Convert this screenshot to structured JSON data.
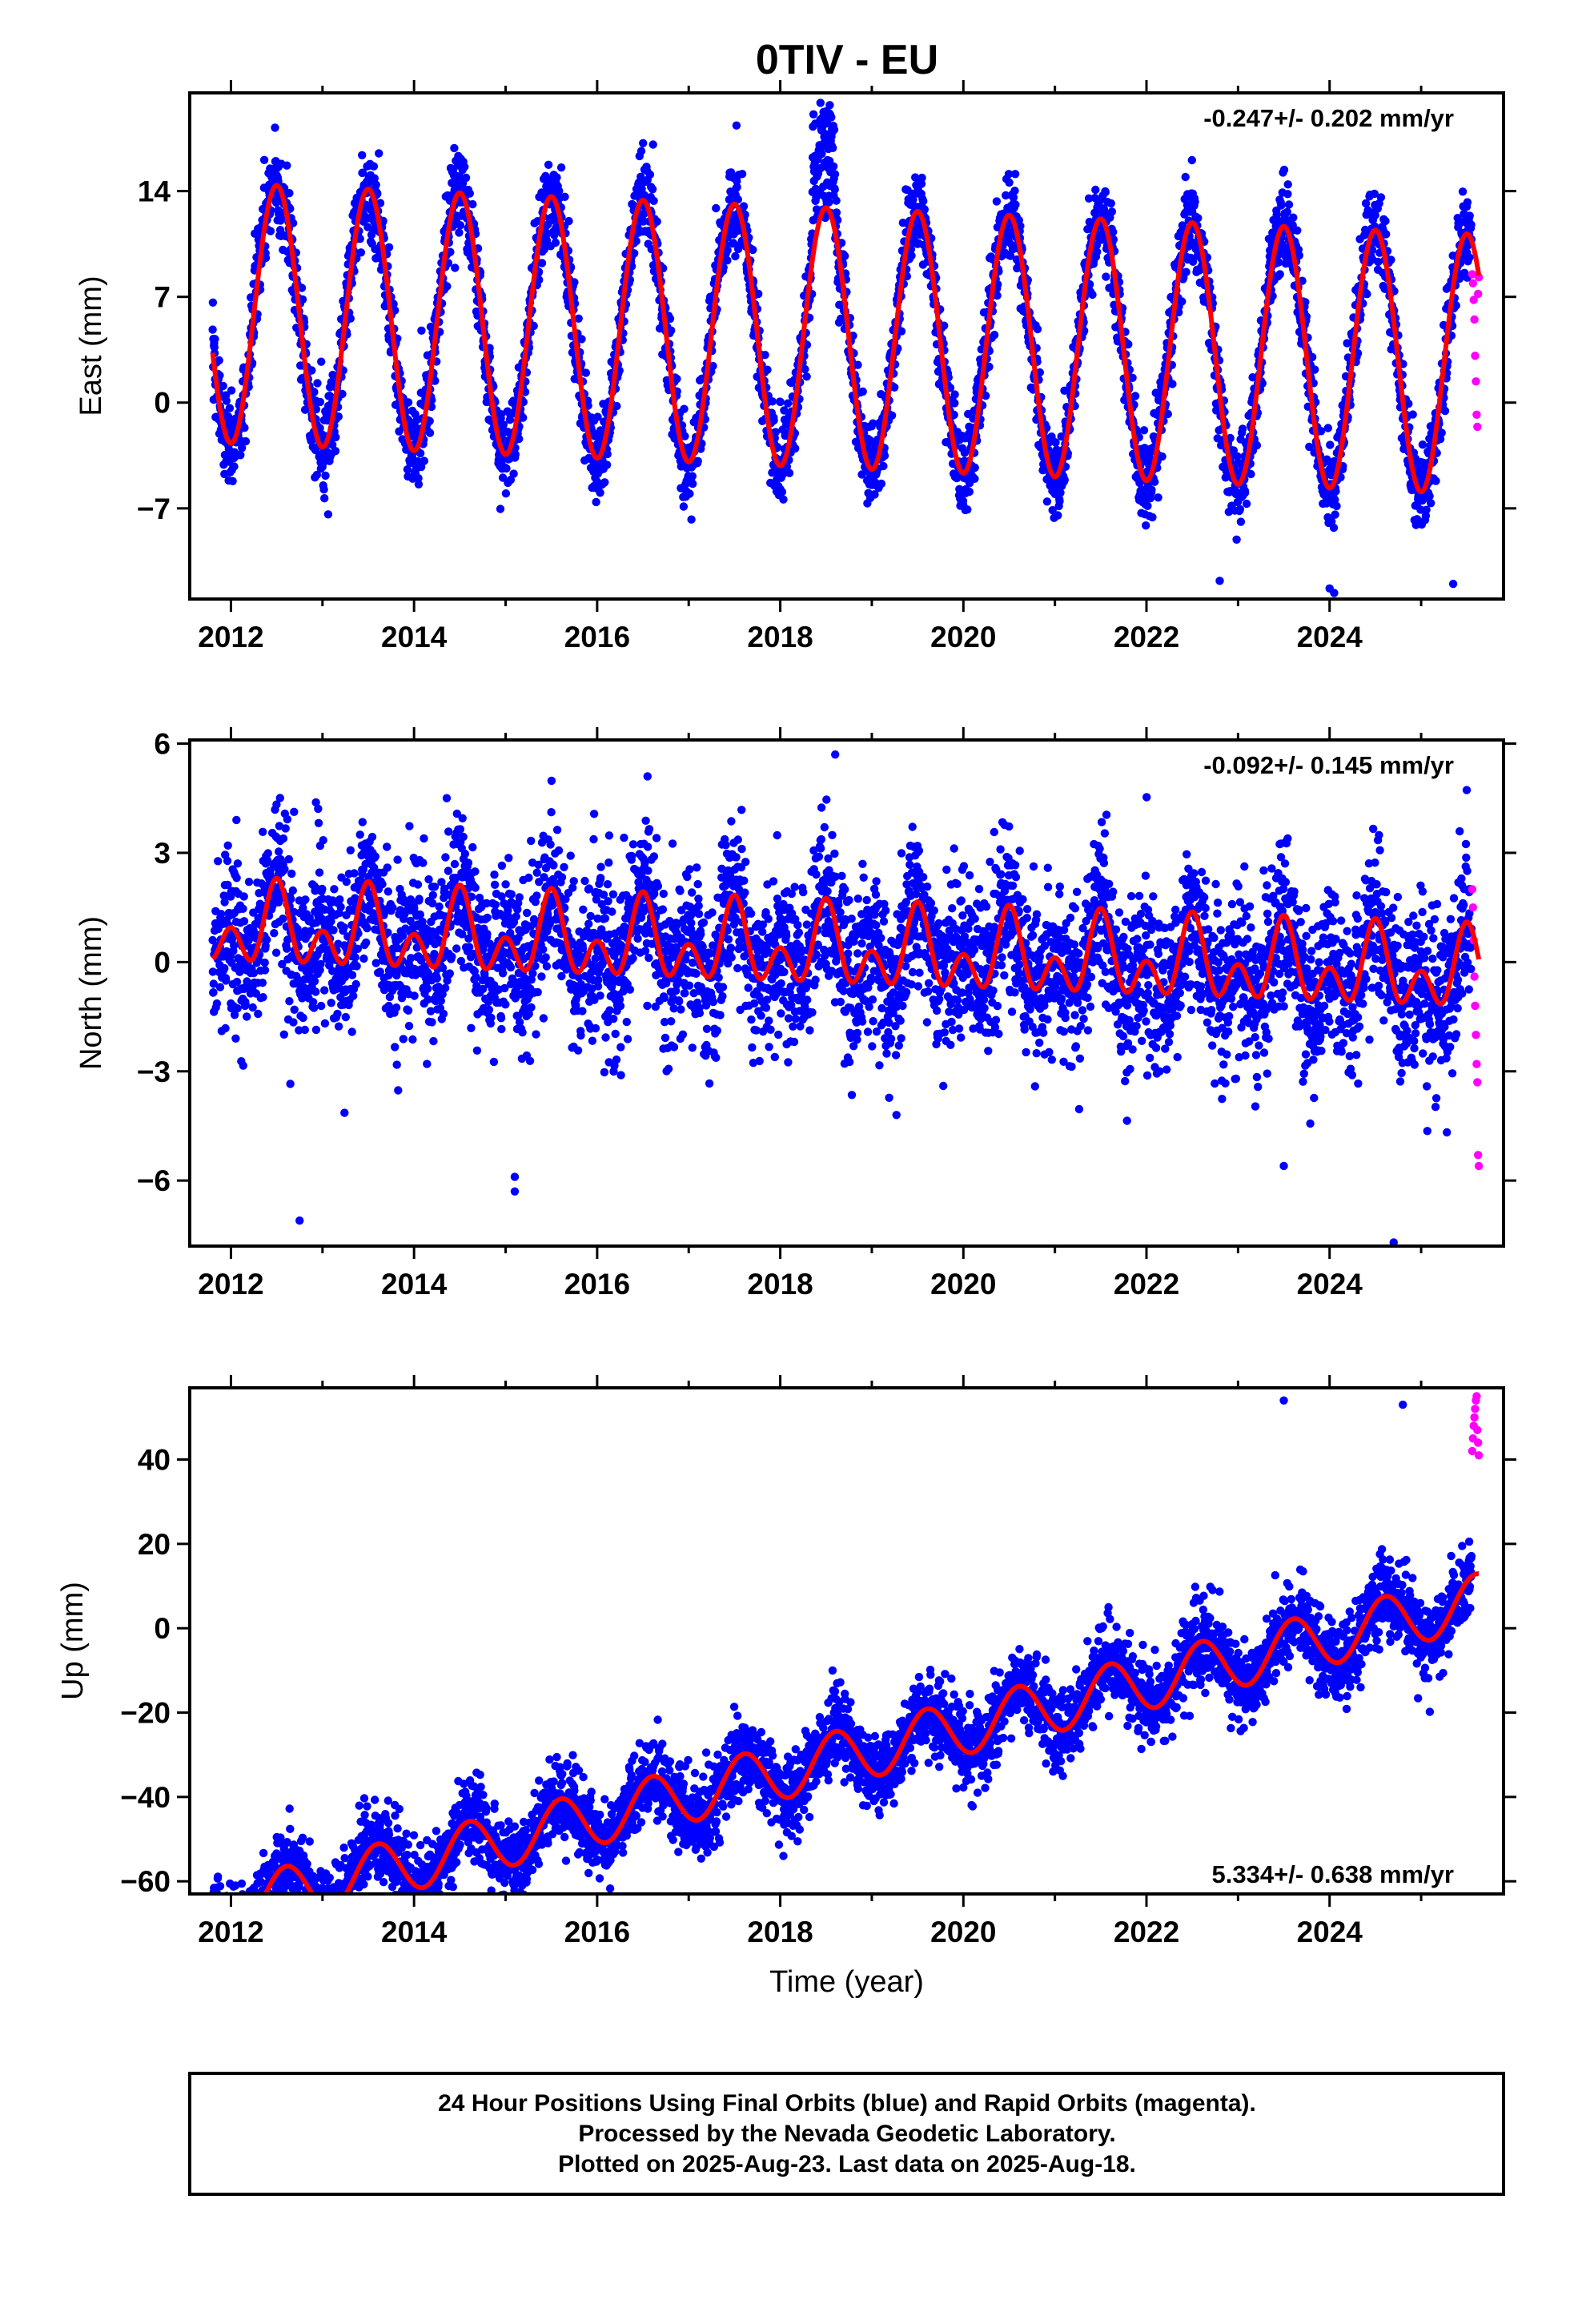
{
  "title": "0TIV - EU",
  "colors": {
    "final": "#0000ff",
    "rapid": "#ff00ff",
    "model": "#ff0000"
  },
  "footer": {
    "lines": [
      "24 Hour Positions Using Final Orbits (blue) and Rapid Orbits (magenta).",
      "Processed by the Nevada Geodetic Laboratory.",
      "Plotted on 2025-Aug-23. Last data on 2025-Aug-18."
    ]
  },
  "chart_data": [
    {
      "type": "scatter",
      "panel": "east",
      "ylabel": "East (mm)",
      "xlabel": "",
      "xlim": [
        2011.55,
        2025.9
      ],
      "ylim": [
        -13,
        20.5
      ],
      "xticks": [
        2012,
        2014,
        2016,
        2018,
        2020,
        2022,
        2024
      ],
      "yticks": [
        -7,
        0,
        7,
        14
      ],
      "rate_label": "-0.247+/- 0.202 mm/yr",
      "rate_label_position": "top-right",
      "model": {
        "offset": 4.3,
        "trend_mm_per_yr": -0.247,
        "annual_amplitude": 8.6,
        "peak_month_fraction": 0.5,
        "semiannual_amplitude": 0.0
      },
      "scatter_sigma": 1.4,
      "data_start": 2011.8,
      "final_end": 2025.55,
      "rapid_end": 2025.63,
      "rapid_values": [
        8.5,
        7.9,
        6.8,
        5.5,
        3.1,
        1.4,
        -0.8,
        -1.6,
        7.2,
        8.3
      ],
      "features": [
        {
          "description_values": "summer-2018 excursion",
          "x_from": 2018.35,
          "x_to": 2018.6,
          "y_low": 12,
          "y_high": 20
        }
      ],
      "outliers": [
        [
          2022.8,
          -11.8
        ],
        [
          2024.0,
          -12.3
        ],
        [
          2024.05,
          -12.6
        ],
        [
          2025.35,
          -12
        ]
      ]
    },
    {
      "type": "scatter",
      "panel": "north",
      "ylabel": "North (mm)",
      "xlabel": "",
      "xlim": [
        2011.55,
        2025.9
      ],
      "ylim": [
        -7.8,
        6.1
      ],
      "xticks": [
        2012,
        2014,
        2016,
        2018,
        2020,
        2022,
        2024
      ],
      "yticks": [
        -6,
        -3,
        0,
        3,
        6
      ],
      "rate_label": "-0.092+/- 0.145 mm/yr",
      "rate_label_position": "top-right",
      "model": {
        "offset": 0.3,
        "trend_mm_per_yr": -0.092,
        "annual_amplitude": 0.7,
        "peak_month_fraction": 0.5,
        "semiannual_amplitude": 0.75
      },
      "scatter_sigma": 1.1,
      "data_start": 2011.8,
      "final_end": 2025.55,
      "rapid_end": 2025.63,
      "rapid_values": [
        2.0,
        1.5,
        0.6,
        -0.4,
        -1.2,
        -2.0,
        -2.8,
        -3.3,
        -5.3,
        -5.6
      ],
      "features": [],
      "outliers": [
        [
          2012.75,
          -7.1
        ],
        [
          2015.1,
          -6.3
        ],
        [
          2015.1,
          -5.9
        ],
        [
          2023.5,
          -5.6
        ],
        [
          2024.7,
          -7.7
        ],
        [
          2018.6,
          5.7
        ],
        [
          2016.55,
          5.1
        ]
      ]
    },
    {
      "type": "scatter",
      "panel": "up",
      "ylabel": "Up (mm)",
      "xlabel": "Time (year)",
      "xlim": [
        2011.55,
        2025.9
      ],
      "ylim": [
        -63,
        57
      ],
      "xticks": [
        2012,
        2014,
        2016,
        2018,
        2020,
        2022,
        2024
      ],
      "yticks": [
        -60,
        -40,
        -20,
        0,
        20,
        40
      ],
      "rate_label": "5.334+/- 0.638 mm/yr",
      "rate_label_position": "bottom-right",
      "model": {
        "offset": -31.5,
        "trend_mm_per_yr": 5.334,
        "annual_amplitude": 6.5,
        "peak_month_fraction": 0.6,
        "semiannual_amplitude": 0.0
      },
      "scatter_sigma": 4.5,
      "data_start": 2011.8,
      "final_end": 2025.55,
      "rapid_end": 2025.63,
      "rapid_values": [
        42,
        45,
        48,
        50,
        52,
        54,
        55,
        47,
        44,
        41
      ],
      "features": [],
      "outliers": [
        [
          2012.05,
          -61
        ],
        [
          2015.1,
          -47
        ],
        [
          2023.5,
          54
        ],
        [
          2024.8,
          53
        ]
      ]
    }
  ]
}
